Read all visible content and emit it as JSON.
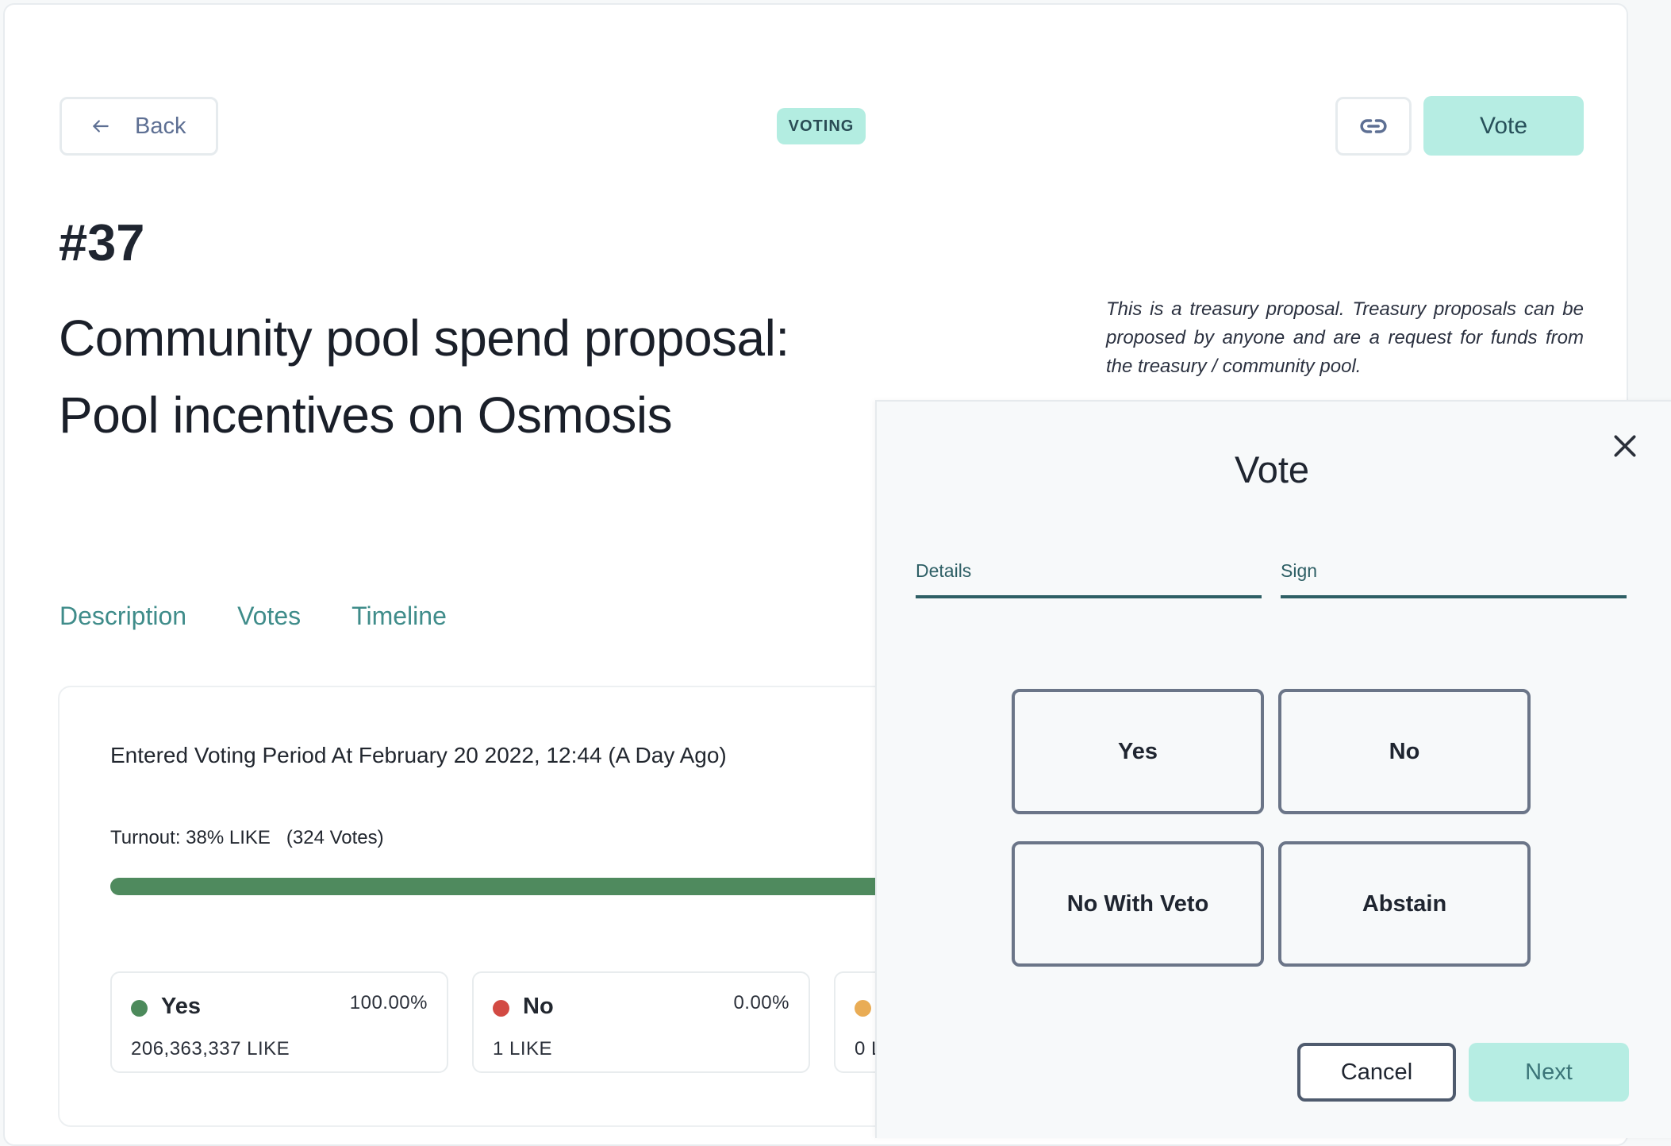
{
  "header": {
    "back_label": "Back",
    "status_badge": "VOTING",
    "vote_button": "Vote"
  },
  "proposal": {
    "id": "#37",
    "title": "Community pool spend proposal: Pool incentives on Osmosis",
    "note": "This is a treasury proposal. Treasury proposals can be proposed by anyone and are a request for funds from the treasury / community pool."
  },
  "tabs": [
    {
      "label": "Description"
    },
    {
      "label": "Votes"
    },
    {
      "label": "Timeline"
    }
  ],
  "votes": {
    "entered": "Entered Voting Period At February 20 2022, 12:44 (A Day Ago)",
    "turnout": "Turnout: 38% LIKE   (324 Votes)",
    "turnout_fraction": 0.38,
    "options": [
      {
        "name": "Yes",
        "percent": "100.00%",
        "amount": "206,363,337 LIKE",
        "color": "#4c8a5b"
      },
      {
        "name": "No",
        "percent": "0.00%",
        "amount": "1 LIKE",
        "color": "#d24a43"
      },
      {
        "name": "",
        "percent": "",
        "amount": "0 L",
        "color": "#e9ac55"
      }
    ]
  },
  "modal": {
    "title": "Vote",
    "steps": [
      {
        "label": "Details"
      },
      {
        "label": "Sign"
      }
    ],
    "choices": [
      {
        "label": "Yes"
      },
      {
        "label": "No"
      },
      {
        "label": "No With Veto"
      },
      {
        "label": "Abstain"
      }
    ],
    "cancel_label": "Cancel",
    "next_label": "Next"
  },
  "colors": {
    "accent": "#b6ede3",
    "tab_text": "#3f8c8a",
    "turnout_bar": "#4f8a5e"
  }
}
